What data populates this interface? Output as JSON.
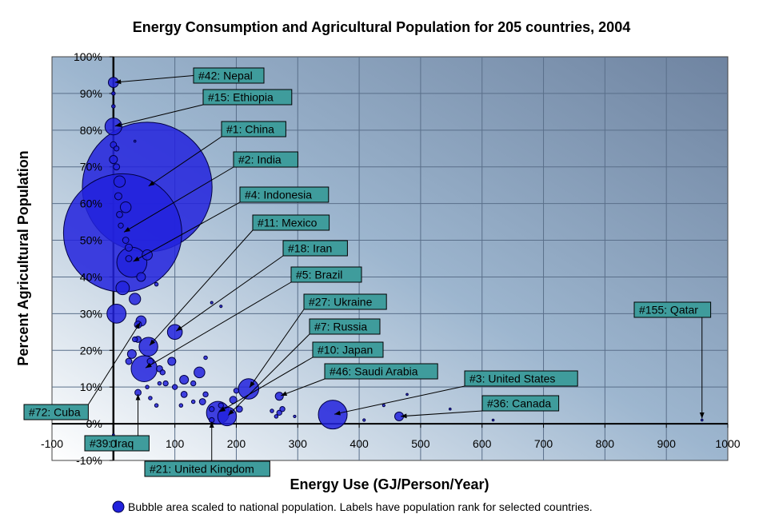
{
  "chart_data": {
    "type": "scatter",
    "title": "Energy Consumption and Agricultural Population for 205 countries, 2004",
    "xlabel": "Energy Use (GJ/Person/Year)",
    "ylabel": "Percent Agricultural Population",
    "xlim": [
      -100,
      1000
    ],
    "ylim": [
      -10,
      100
    ],
    "x_ticks": [
      "-100",
      "0",
      "100",
      "200",
      "300",
      "400",
      "500",
      "600",
      "700",
      "800",
      "900",
      "1000"
    ],
    "y_ticks": [
      "-10%",
      "0%",
      "10%",
      "20%",
      "30%",
      "40%",
      "50%",
      "60%",
      "70%",
      "80%",
      "90%",
      "100%"
    ],
    "grid": true,
    "legend": "Bubble area scaled to national population.  Labels have population rank for selected countries.",
    "colors": {
      "bubble": "#2222dd",
      "label_box": "#3f9c9c"
    },
    "points": [
      {
        "x": 55,
        "y": 64.5,
        "pop": 1300
      },
      {
        "x": 15,
        "y": 52,
        "pop": 1080
      },
      {
        "x": 0,
        "y": 93,
        "pop": 8
      },
      {
        "x": 0,
        "y": 81,
        "pop": 22
      },
      {
        "x": 30,
        "y": 44,
        "pop": 70
      },
      {
        "x": 57,
        "y": 21,
        "pop": 27
      },
      {
        "x": 100,
        "y": 25,
        "pop": 17
      },
      {
        "x": 50,
        "y": 15,
        "pop": 52
      },
      {
        "x": 140,
        "y": 14,
        "pop": 9
      },
      {
        "x": 220,
        "y": 9.5,
        "pop": 32
      },
      {
        "x": 170,
        "y": 3,
        "pop": 40
      },
      {
        "x": 185,
        "y": 2,
        "pop": 27
      },
      {
        "x": 270,
        "y": 7.5,
        "pop": 5
      },
      {
        "x": 357,
        "y": 2.5,
        "pop": 64
      },
      {
        "x": 465,
        "y": 2,
        "pop": 6
      },
      {
        "x": 958,
        "y": 1,
        "pop": 0.2
      },
      {
        "x": 5,
        "y": 30,
        "pop": 28
      },
      {
        "x": 15,
        "y": 37,
        "pop": 14
      },
      {
        "x": 20,
        "y": 59,
        "pop": 9
      },
      {
        "x": 10,
        "y": 66,
        "pop": 10
      },
      {
        "x": 0,
        "y": 72,
        "pop": 5
      },
      {
        "x": 0,
        "y": 76,
        "pop": 3
      },
      {
        "x": 5,
        "y": 75,
        "pop": 2
      },
      {
        "x": 5,
        "y": 70,
        "pop": 3
      },
      {
        "x": 8,
        "y": 62,
        "pop": 4
      },
      {
        "x": 25,
        "y": 48,
        "pop": 4
      },
      {
        "x": 10,
        "y": 57,
        "pop": 3
      },
      {
        "x": 12,
        "y": 54,
        "pop": 2
      },
      {
        "x": 20,
        "y": 50,
        "pop": 3
      },
      {
        "x": 25,
        "y": 45,
        "pop": 3
      },
      {
        "x": 55,
        "y": 46,
        "pop": 8
      },
      {
        "x": 45,
        "y": 40,
        "pop": 6
      },
      {
        "x": 35,
        "y": 34,
        "pop": 10
      },
      {
        "x": 45,
        "y": 28,
        "pop": 8
      },
      {
        "x": 40,
        "y": 27,
        "pop": 4
      },
      {
        "x": 40,
        "y": 23,
        "pop": 3
      },
      {
        "x": 35,
        "y": 23,
        "pop": 2
      },
      {
        "x": 30,
        "y": 19,
        "pop": 6
      },
      {
        "x": 25,
        "y": 17,
        "pop": 3
      },
      {
        "x": 60,
        "y": 17,
        "pop": 3
      },
      {
        "x": 75,
        "y": 15,
        "pop": 3
      },
      {
        "x": 80,
        "y": 14,
        "pop": 2
      },
      {
        "x": 95,
        "y": 17,
        "pop": 5
      },
      {
        "x": 115,
        "y": 12,
        "pop": 6
      },
      {
        "x": 130,
        "y": 11,
        "pop": 2
      },
      {
        "x": 115,
        "y": 8,
        "pop": 3
      },
      {
        "x": 100,
        "y": 10,
        "pop": 2
      },
      {
        "x": 85,
        "y": 11,
        "pop": 2
      },
      {
        "x": 75,
        "y": 11,
        "pop": 1
      },
      {
        "x": 40,
        "y": 8.5,
        "pop": 3
      },
      {
        "x": 60,
        "y": 7,
        "pop": 1
      },
      {
        "x": 55,
        "y": 10,
        "pop": 1
      },
      {
        "x": 70,
        "y": 5,
        "pop": 1
      },
      {
        "x": 110,
        "y": 5,
        "pop": 1
      },
      {
        "x": 130,
        "y": 6,
        "pop": 1
      },
      {
        "x": 145,
        "y": 6,
        "pop": 3
      },
      {
        "x": 150,
        "y": 8,
        "pop": 2
      },
      {
        "x": 160,
        "y": 4,
        "pop": 2
      },
      {
        "x": 195,
        "y": 6.5,
        "pop": 4
      },
      {
        "x": 205,
        "y": 4,
        "pop": 3
      },
      {
        "x": 200,
        "y": 9,
        "pop": 2
      },
      {
        "x": 175,
        "y": 5,
        "pop": 2
      },
      {
        "x": 160,
        "y": 1,
        "pop": 2
      },
      {
        "x": 270,
        "y": 3,
        "pop": 2
      },
      {
        "x": 265,
        "y": 2,
        "pop": 1
      },
      {
        "x": 275,
        "y": 4,
        "pop": 2
      },
      {
        "x": 258,
        "y": 3.5,
        "pop": 1
      },
      {
        "x": 295,
        "y": 2,
        "pop": 0.5
      },
      {
        "x": 150,
        "y": 18,
        "pop": 1
      },
      {
        "x": 160,
        "y": 33,
        "pop": 0.5
      },
      {
        "x": 175,
        "y": 32,
        "pop": 0.5
      },
      {
        "x": 70,
        "y": 38,
        "pop": 1
      },
      {
        "x": 35,
        "y": 77,
        "pop": 0.3
      },
      {
        "x": 0,
        "y": 86.5,
        "pop": 1
      },
      {
        "x": 0,
        "y": 90,
        "pop": 1
      },
      {
        "x": 408,
        "y": 1,
        "pop": 0.5
      },
      {
        "x": 440,
        "y": 5,
        "pop": 0.5
      },
      {
        "x": 478,
        "y": 8,
        "pop": 0.2
      },
      {
        "x": 548,
        "y": 4,
        "pop": 0.3
      },
      {
        "x": 618,
        "y": 1,
        "pop": 0.2
      },
      {
        "x": 0,
        "y": -3,
        "pop": 0.3
      }
    ],
    "labels": [
      {
        "text": "#42: Nepal",
        "x": 0,
        "y": 93
      },
      {
        "text": "#15: Ethiopia",
        "x": 0,
        "y": 81
      },
      {
        "text": "#1: China",
        "x": 55,
        "y": 64.5
      },
      {
        "text": "#2: India",
        "x": 15,
        "y": 52
      },
      {
        "text": "#4: Indonesia",
        "x": 30,
        "y": 44
      },
      {
        "text": "#11: Mexico",
        "x": 57,
        "y": 21
      },
      {
        "text": "#18: Iran",
        "x": 100,
        "y": 25
      },
      {
        "text": "#5: Brazil",
        "x": 50,
        "y": 15
      },
      {
        "text": "#27: Ukraine",
        "x": 220,
        "y": 9.5
      },
      {
        "text": "#7: Russia",
        "x": 185,
        "y": 2
      },
      {
        "text": "#10: Japan",
        "x": 170,
        "y": 3
      },
      {
        "text": "#46: Saudi Arabia",
        "x": 270,
        "y": 7.5
      },
      {
        "text": "#3: United States",
        "x": 357,
        "y": 2.5
      },
      {
        "text": "#36: Canada",
        "x": 465,
        "y": 2
      },
      {
        "text": "#155: Qatar",
        "x": 958,
        "y": 1
      },
      {
        "text": "#72: Cuba",
        "x": 45,
        "y": 28
      },
      {
        "text": "#39: Iraq",
        "x": 40,
        "y": 8.5
      },
      {
        "text": "#21: United Kingdom",
        "x": 160,
        "y": 1
      }
    ]
  }
}
